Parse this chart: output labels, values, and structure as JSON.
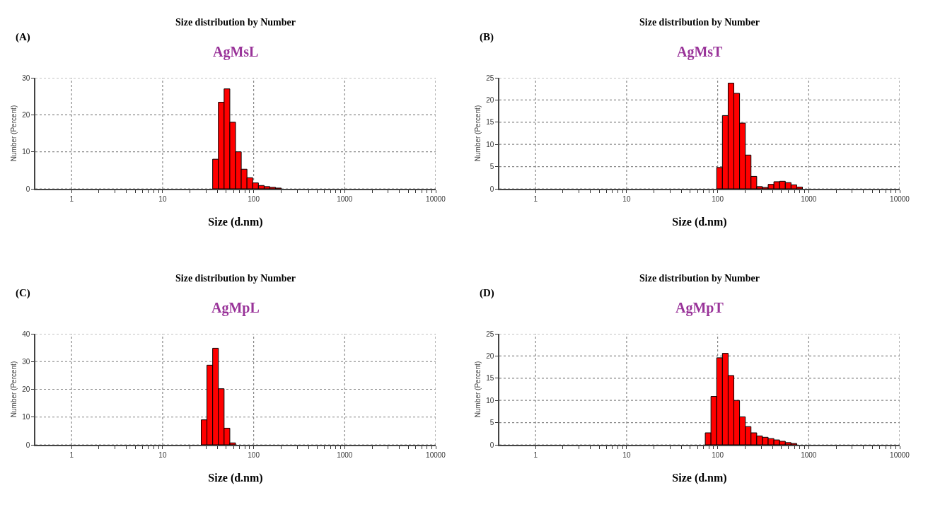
{
  "chart_data": [
    {
      "type": "histogram",
      "title": "Size distribution by Number",
      "subtitle": "AgMsL",
      "annotations": [
        "(A)"
      ],
      "xlabel": "Size (d.nm)",
      "ylabel": "Number (Percent)",
      "log": "x",
      "grid": true,
      "color": "#ff0000",
      "bins": [
        35.46,
        40.99,
        47.36,
        54.74,
        63.24,
        73.1,
        84.47,
        97.62,
        112.8,
        130.4,
        150.7,
        174.1,
        201.2
      ],
      "values": [
        8,
        23.4,
        27,
        18,
        10,
        5.3,
        3,
        1.6,
        0.9,
        0.6,
        0.4,
        0.2
      ],
      "xlim": [
        0.4,
        10000
      ],
      "ylim": [
        0,
        30
      ],
      "yticks": [
        0,
        10,
        20,
        30
      ],
      "xticks": [
        1,
        {
          "value": 2,
          "label": null
        },
        {
          "value": 3,
          "label": null
        },
        {
          "value": 4,
          "label": null
        },
        {
          "value": 5,
          "label": null
        },
        {
          "value": 6,
          "label": null
        },
        {
          "value": 7,
          "label": null
        },
        {
          "value": 8,
          "label": null
        },
        {
          "value": 9,
          "label": null
        },
        10,
        {
          "value": 20,
          "label": null
        },
        {
          "value": 30,
          "label": null
        },
        {
          "value": 40,
          "label": null
        },
        {
          "value": 50,
          "label": null
        },
        {
          "value": 60,
          "label": null
        },
        {
          "value": 70,
          "label": null
        },
        {
          "value": 80,
          "label": null
        },
        {
          "value": 90,
          "label": null
        },
        100,
        {
          "value": 200,
          "label": null
        },
        {
          "value": 300,
          "label": null
        },
        {
          "value": 400,
          "label": null
        },
        {
          "value": 500,
          "label": null
        },
        {
          "value": 600,
          "label": null
        },
        {
          "value": 700,
          "label": null
        },
        {
          "value": 800,
          "label": null
        },
        {
          "value": 900,
          "label": null
        },
        1000,
        {
          "value": 2000,
          "label": null
        },
        {
          "value": 3000,
          "label": null
        },
        {
          "value": 4000,
          "label": null
        },
        {
          "value": 5000,
          "label": null
        },
        {
          "value": 6000,
          "label": null
        },
        {
          "value": 7000,
          "label": null
        },
        {
          "value": 8000,
          "label": null
        },
        {
          "value": 9000,
          "label": null
        },
        10000
      ]
    },
    {
      "type": "histogram",
      "title": "Size distribution by Number",
      "subtitle": "AgMsT",
      "annotations": [
        "(B)"
      ],
      "xlabel": "Size (d.nm)",
      "ylabel": "Number (Percent)",
      "log": "x",
      "grid": true,
      "color": "#ff0000",
      "bins": [
        97.62,
        112.8,
        130.4,
        150.7,
        174.1,
        201.2,
        232.5,
        268.7,
        310.5,
        358.9,
        414.7,
        479.3,
        553.9,
        640.1,
        739.7,
        854.8
      ],
      "values": [
        4.8,
        16.5,
        23.8,
        21.5,
        14.8,
        7.6,
        2.8,
        0.5,
        0.3,
        1.0,
        1.6,
        1.7,
        1.4,
        0.9,
        0.4
      ],
      "xlim": [
        0.4,
        10000
      ],
      "ylim": [
        0,
        25
      ],
      "yticks": [
        0,
        5,
        10,
        15,
        20,
        25
      ],
      "xticks": [
        1,
        {
          "value": 2,
          "label": null
        },
        {
          "value": 3,
          "label": null
        },
        {
          "value": 4,
          "label": null
        },
        {
          "value": 5,
          "label": null
        },
        {
          "value": 6,
          "label": null
        },
        {
          "value": 7,
          "label": null
        },
        {
          "value": 8,
          "label": null
        },
        {
          "value": 9,
          "label": null
        },
        10,
        {
          "value": 20,
          "label": null
        },
        {
          "value": 30,
          "label": null
        },
        {
          "value": 40,
          "label": null
        },
        {
          "value": 50,
          "label": null
        },
        {
          "value": 60,
          "label": null
        },
        {
          "value": 70,
          "label": null
        },
        {
          "value": 80,
          "label": null
        },
        {
          "value": 90,
          "label": null
        },
        100,
        {
          "value": 200,
          "label": null
        },
        {
          "value": 300,
          "label": null
        },
        {
          "value": 400,
          "label": null
        },
        {
          "value": 500,
          "label": null
        },
        {
          "value": 600,
          "label": null
        },
        {
          "value": 700,
          "label": null
        },
        {
          "value": 800,
          "label": null
        },
        {
          "value": 900,
          "label": null
        },
        1000,
        {
          "value": 2000,
          "label": null
        },
        {
          "value": 3000,
          "label": null
        },
        {
          "value": 4000,
          "label": null
        },
        {
          "value": 5000,
          "label": null
        },
        {
          "value": 6000,
          "label": null
        },
        {
          "value": 7000,
          "label": null
        },
        {
          "value": 8000,
          "label": null
        },
        {
          "value": 9000,
          "label": null
        },
        10000
      ]
    },
    {
      "type": "histogram",
      "title": "Size distribution by Number",
      "subtitle": "AgMpL",
      "annotations": [
        "(C)"
      ],
      "xlabel": "Size (d.nm)",
      "ylabel": "Number (Percent)",
      "log": "x",
      "grid": true,
      "color": "#ff0000",
      "bins": [
        26.55,
        30.69,
        35.46,
        40.99,
        47.36,
        54.74,
        63.24
      ],
      "values": [
        9,
        28.7,
        34.8,
        20.2,
        6,
        0.7
      ],
      "xlim": [
        0.4,
        10000
      ],
      "ylim": [
        0,
        40
      ],
      "yticks": [
        0,
        10,
        20,
        30,
        40
      ],
      "xticks": [
        1,
        {
          "value": 2,
          "label": null
        },
        {
          "value": 3,
          "label": null
        },
        {
          "value": 4,
          "label": null
        },
        {
          "value": 5,
          "label": null
        },
        {
          "value": 6,
          "label": null
        },
        {
          "value": 7,
          "label": null
        },
        {
          "value": 8,
          "label": null
        },
        {
          "value": 9,
          "label": null
        },
        10,
        {
          "value": 20,
          "label": null
        },
        {
          "value": 30,
          "label": null
        },
        {
          "value": 40,
          "label": null
        },
        {
          "value": 50,
          "label": null
        },
        {
          "value": 60,
          "label": null
        },
        {
          "value": 70,
          "label": null
        },
        {
          "value": 80,
          "label": null
        },
        {
          "value": 90,
          "label": null
        },
        100,
        {
          "value": 200,
          "label": null
        },
        {
          "value": 300,
          "label": null
        },
        {
          "value": 400,
          "label": null
        },
        {
          "value": 500,
          "label": null
        },
        {
          "value": 600,
          "label": null
        },
        {
          "value": 700,
          "label": null
        },
        {
          "value": 800,
          "label": null
        },
        {
          "value": 900,
          "label": null
        },
        1000,
        {
          "value": 2000,
          "label": null
        },
        {
          "value": 3000,
          "label": null
        },
        {
          "value": 4000,
          "label": null
        },
        {
          "value": 5000,
          "label": null
        },
        {
          "value": 6000,
          "label": null
        },
        {
          "value": 7000,
          "label": null
        },
        {
          "value": 8000,
          "label": null
        },
        {
          "value": 9000,
          "label": null
        },
        10000
      ]
    },
    {
      "type": "histogram",
      "title": "Size distribution by Number",
      "subtitle": "AgMpT",
      "annotations": [
        "(D)"
      ],
      "xlabel": "Size (d.nm)",
      "ylabel": "Number (Percent)",
      "log": "x",
      "grid": true,
      "color": "#ff0000",
      "bins": [
        73.1,
        84.47,
        97.62,
        112.8,
        130.4,
        150.7,
        174.1,
        201.2,
        232.5,
        268.7,
        310.5,
        358.9,
        414.7,
        479.3,
        553.9,
        640.1,
        739.7
      ],
      "values": [
        2.7,
        10.9,
        19.6,
        20.6,
        15.6,
        10,
        6.3,
        4.1,
        2.7,
        2,
        1.7,
        1.4,
        1.1,
        0.8,
        0.5,
        0.3
      ],
      "xlim": [
        0.4,
        10000
      ],
      "ylim": [
        0,
        25
      ],
      "yticks": [
        0,
        5,
        10,
        15,
        20,
        25
      ],
      "xticks": [
        1,
        {
          "value": 2,
          "label": null
        },
        {
          "value": 3,
          "label": null
        },
        {
          "value": 4,
          "label": null
        },
        {
          "value": 5,
          "label": null
        },
        {
          "value": 6,
          "label": null
        },
        {
          "value": 7,
          "label": null
        },
        {
          "value": 8,
          "label": null
        },
        {
          "value": 9,
          "label": null
        },
        10,
        {
          "value": 20,
          "label": null
        },
        {
          "value": 30,
          "label": null
        },
        {
          "value": 40,
          "label": null
        },
        {
          "value": 50,
          "label": null
        },
        {
          "value": 60,
          "label": null
        },
        {
          "value": 70,
          "label": null
        },
        {
          "value": 80,
          "label": null
        },
        {
          "value": 90,
          "label": null
        },
        100,
        {
          "value": 200,
          "label": null
        },
        {
          "value": 300,
          "label": null
        },
        {
          "value": 400,
          "label": null
        },
        {
          "value": 500,
          "label": null
        },
        {
          "value": 600,
          "label": null
        },
        {
          "value": 700,
          "label": null
        },
        {
          "value": 800,
          "label": null
        },
        {
          "value": 900,
          "label": null
        },
        1000,
        {
          "value": 2000,
          "label": null
        },
        {
          "value": 3000,
          "label": null
        },
        {
          "value": 4000,
          "label": null
        },
        {
          "value": 5000,
          "label": null
        },
        {
          "value": 6000,
          "label": null
        },
        {
          "value": 7000,
          "label": null
        },
        {
          "value": 8000,
          "label": null
        },
        {
          "value": 9000,
          "label": null
        },
        10000
      ]
    }
  ]
}
